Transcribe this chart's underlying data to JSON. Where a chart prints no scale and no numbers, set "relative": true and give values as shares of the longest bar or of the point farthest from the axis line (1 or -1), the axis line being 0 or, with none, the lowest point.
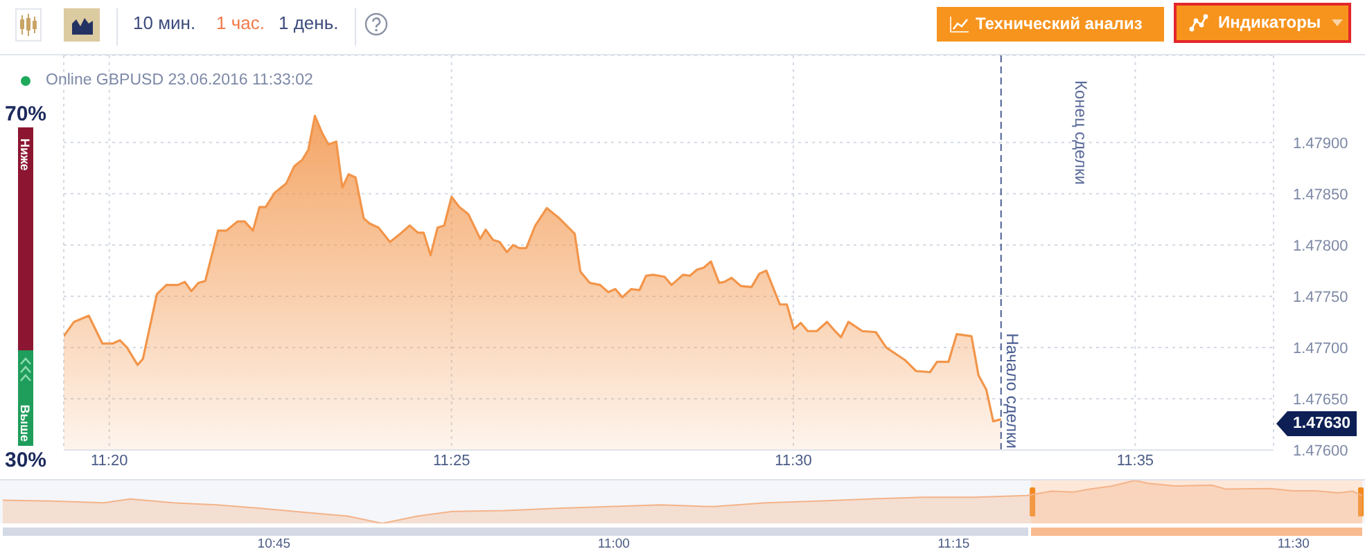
{
  "chart_data": [
    {
      "type": "area",
      "title": "Online GBPUSD 23.06.2016 11:33:02",
      "x": [
        11.3222,
        11.3247,
        11.3283,
        11.3316,
        11.3342,
        11.3359,
        11.3376,
        11.3402,
        11.3415,
        11.3449,
        11.3472,
        11.35,
        11.3517,
        11.3533,
        11.355,
        11.3567,
        11.3598,
        11.3618,
        11.3646,
        11.3663,
        11.3683,
        11.3699,
        11.3714,
        11.3736,
        11.3764,
        11.3784,
        11.3803,
        11.3818,
        11.3834,
        11.3852,
        11.3867,
        11.3886,
        11.3901,
        11.3916,
        11.3933,
        11.3953,
        11.3967,
        11.3989,
        11.4017,
        11.4045,
        11.4065,
        11.4085,
        11.4099,
        11.4116,
        11.4133,
        11.4149,
        11.4167,
        11.4186,
        11.4208,
        11.4237,
        11.425,
        11.4268,
        11.4284,
        11.4302,
        11.4317,
        11.4332,
        11.4349,
        11.4371,
        11.4399,
        11.4427,
        11.4467,
        11.4481,
        11.4504,
        11.4529,
        11.4549,
        11.4566,
        11.4583,
        11.4605,
        11.4625,
        11.4641,
        11.4658,
        11.4686,
        11.4703,
        11.4731,
        11.4748,
        11.4765,
        11.4782,
        11.4799,
        11.4819,
        11.4832,
        11.4849,
        11.4872,
        11.4898,
        11.4917,
        11.4934,
        11.4967,
        11.4984,
        11.5001,
        11.5018,
        11.5035,
        11.5057,
        11.5082,
        11.5097,
        11.5116,
        11.5134,
        11.5168,
        11.5201,
        11.5226,
        11.5271,
        11.5299,
        11.5333,
        11.535,
        11.5378,
        11.5398,
        11.5434,
        11.5451,
        11.547,
        11.5487,
        11.5506
      ],
      "values": [
        1.47711,
        1.47725,
        1.47731,
        1.47704,
        1.47704,
        1.47707,
        1.477,
        1.47683,
        1.47689,
        1.47752,
        1.47761,
        1.47761,
        1.47764,
        1.47755,
        1.47763,
        1.47765,
        1.47814,
        1.47814,
        1.47823,
        1.47823,
        1.47814,
        1.47837,
        1.47837,
        1.47851,
        1.4786,
        1.47877,
        1.47883,
        1.47893,
        1.47926,
        1.47909,
        1.47898,
        1.47901,
        1.47856,
        1.47869,
        1.47866,
        1.47826,
        1.47821,
        1.47817,
        1.47803,
        1.47812,
        1.47819,
        1.47812,
        1.47812,
        1.4779,
        1.47817,
        1.47819,
        1.47847,
        1.47837,
        1.4783,
        1.47806,
        1.47815,
        1.47805,
        1.47803,
        1.47793,
        1.478,
        1.47797,
        1.47797,
        1.47819,
        1.47836,
        1.47827,
        1.47811,
        1.47774,
        1.47763,
        1.47761,
        1.47754,
        1.47757,
        1.47749,
        1.47757,
        1.47756,
        1.4777,
        1.47771,
        1.47769,
        1.47761,
        1.47771,
        1.4777,
        1.47776,
        1.47778,
        1.47784,
        1.47763,
        1.47764,
        1.47768,
        1.4776,
        1.47759,
        1.47772,
        1.47775,
        1.47742,
        1.47742,
        1.47718,
        1.47724,
        1.47716,
        1.47716,
        1.47725,
        1.47718,
        1.4771,
        1.47725,
        1.47716,
        1.47715,
        1.477,
        1.47688,
        1.47677,
        1.47676,
        1.47686,
        1.47686,
        1.47713,
        1.47711,
        1.47673,
        1.47659,
        1.47628,
        1.4763
      ],
      "color": "#f2954a",
      "xlim": [
        11.3222,
        11.617
      ],
      "xticks": [
        {
          "value": 11.3333,
          "label": "11:20"
        },
        {
          "value": 11.4167,
          "label": "11:25"
        },
        {
          "value": 11.5,
          "label": "11:30"
        },
        {
          "value": 11.5833,
          "label": "11:35"
        }
      ],
      "ylim": [
        1.476,
        1.47985
      ],
      "yticks": [
        {
          "value": 1.476,
          "label": "1.47600"
        },
        {
          "value": 1.4765,
          "label": "1.47650"
        },
        {
          "value": 1.477,
          "label": "1.47700"
        },
        {
          "value": 1.4775,
          "label": "1.47750"
        },
        {
          "value": 1.478,
          "label": "1.47800"
        },
        {
          "value": 1.4785,
          "label": "1.47850"
        },
        {
          "value": 1.479,
          "label": "1.47900"
        }
      ],
      "grid": true,
      "ref_lines": [
        {
          "axis": "x",
          "value": 11.5506,
          "label": "Начало сделки",
          "color": "#4a5d92",
          "line_style": "dashed"
        }
      ],
      "annotations": [
        "10 мин.",
        "1 час.",
        "1 день.",
        "Технический анализ",
        "Индикаторы",
        "Конец сделки",
        "1.47630"
      ]
    },
    {
      "type": "bar",
      "stacked": true,
      "categories": [
        null
      ],
      "series": [
        {
          "name": "Выше",
          "color": "#1f9d5b",
          "values": [
            30
          ],
          "value_labels": [
            "30%"
          ]
        },
        {
          "name": "Ниже",
          "color": "#8c1631",
          "values": [
            70
          ],
          "value_labels": [
            "70%"
          ]
        }
      ],
      "tick_labels": false
    },
    {
      "type": "area",
      "relative": true,
      "x": [
        10.5505,
        10.5867,
        10.625,
        10.6442,
        10.6762,
        10.708,
        10.7403,
        10.7723,
        10.8043,
        10.8298,
        10.8555,
        10.8812,
        10.9195,
        10.958,
        10.9963,
        11.0348,
        11.0732,
        11.1117,
        11.15,
        11.1885,
        11.2268,
        11.2653,
        11.3037,
        11.3222,
        11.3383,
        11.35,
        11.3667,
        11.3834,
        11.3933,
        11.4133,
        11.4399,
        11.45,
        11.4834,
        11.5,
        11.5167,
        11.5333,
        11.5434,
        11.5506
      ],
      "values": [
        0.54,
        0.52,
        0.48,
        0.57,
        0.48,
        0.43,
        0.35,
        0.26,
        0.17,
        0,
        0.17,
        0.28,
        0.3,
        0.35,
        0.39,
        0.43,
        0.39,
        0.48,
        0.52,
        0.57,
        0.61,
        0.61,
        0.65,
        0.75,
        0.73,
        0.8,
        0.87,
        1,
        0.93,
        0.87,
        0.89,
        0.8,
        0.81,
        0.76,
        0.76,
        0.71,
        0.75,
        0.65
      ],
      "color": "#f4b389",
      "xlim": [
        10.5505,
        11.5506
      ],
      "xticks": [
        {
          "value": 10.75,
          "label": "10:45"
        },
        {
          "value": 11,
          "label": "11:00"
        },
        {
          "value": 11.25,
          "label": "11:15"
        },
        {
          "value": 11.5,
          "label": "11:30"
        }
      ],
      "bands": [
        {
          "axis": "x",
          "from": 11.307,
          "to": 11.5506,
          "color": "#fde7d8"
        }
      ],
      "tick_labels": "x"
    }
  ]
}
